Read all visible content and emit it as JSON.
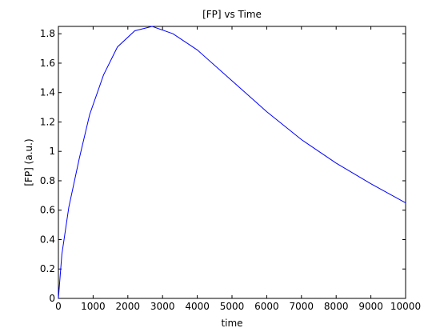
{
  "chart_data": {
    "type": "line",
    "title": "[FP] vs Time",
    "xlabel": "time",
    "ylabel": "[FP] (a.u.)",
    "xlim": [
      0,
      10000
    ],
    "ylim": [
      0,
      1.85
    ],
    "grid": false,
    "legend": "none",
    "line_color": "#0000ff",
    "x_ticks": [
      {
        "value": 0,
        "label": "0"
      },
      {
        "value": 1000,
        "label": "1000"
      },
      {
        "value": 2000,
        "label": "2000"
      },
      {
        "value": 3000,
        "label": "3000"
      },
      {
        "value": 4000,
        "label": "4000"
      },
      {
        "value": 5000,
        "label": "5000"
      },
      {
        "value": 6000,
        "label": "6000"
      },
      {
        "value": 7000,
        "label": "7000"
      },
      {
        "value": 8000,
        "label": "8000"
      },
      {
        "value": 9000,
        "label": "9000"
      },
      {
        "value": 10000,
        "label": "10000"
      }
    ],
    "y_ticks": [
      {
        "value": 0,
        "label": "0"
      },
      {
        "value": 0.2,
        "label": "0.2"
      },
      {
        "value": 0.4,
        "label": "0.4"
      },
      {
        "value": 0.6,
        "label": "0.6"
      },
      {
        "value": 0.8,
        "label": "0.8"
      },
      {
        "value": 1.0,
        "label": "1"
      },
      {
        "value": 1.2,
        "label": "1.2"
      },
      {
        "value": 1.4,
        "label": "1.4"
      },
      {
        "value": 1.6,
        "label": "1.6"
      },
      {
        "value": 1.8,
        "label": "1.8"
      }
    ],
    "series": [
      {
        "x": [
          0,
          100,
          300,
          600,
          900,
          1300,
          1700,
          2200,
          2700,
          3300,
          4000,
          5000,
          6000,
          7000,
          8000,
          9000,
          10000
        ],
        "y": [
          0.0,
          0.3,
          0.62,
          0.95,
          1.25,
          1.52,
          1.71,
          1.82,
          1.85,
          1.8,
          1.69,
          1.48,
          1.27,
          1.08,
          0.92,
          0.78,
          0.65
        ]
      }
    ]
  }
}
